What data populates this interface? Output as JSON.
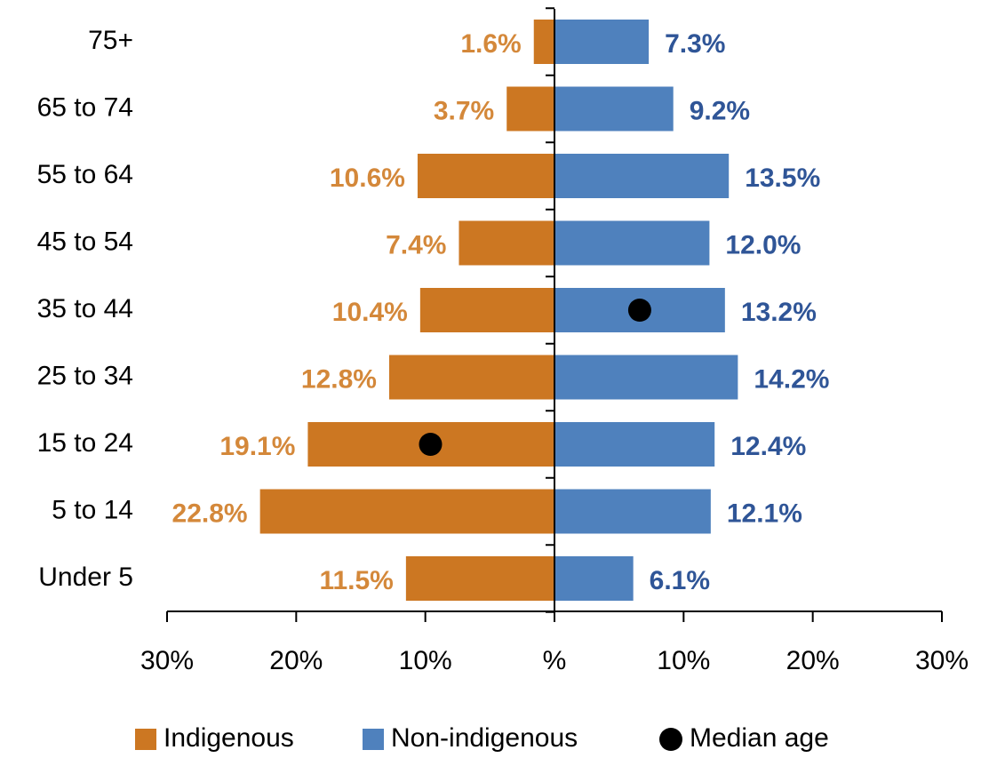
{
  "chart_data": {
    "type": "pyramid",
    "categories": [
      "75+",
      "65 to 74",
      "55 to 64",
      "45 to 54",
      "35 to 44",
      "25 to 34",
      "15 to 24",
      "5 to 14",
      "Under 5"
    ],
    "series": [
      {
        "name": "Indigenous",
        "color": "#CC7722",
        "label_color": "#D4883A",
        "side": "left",
        "values": [
          1.6,
          3.7,
          10.6,
          7.4,
          10.4,
          12.8,
          19.1,
          22.8,
          11.5
        ],
        "value_labels": [
          "1.6%",
          "3.7%",
          "10.6%",
          "7.4%",
          "10.4%",
          "12.8%",
          "19.1%",
          "22.8%",
          "11.5%"
        ]
      },
      {
        "name": "Non-indigenous",
        "color": "#4F81BD",
        "label_color": "#2F5597",
        "side": "right",
        "values": [
          7.3,
          9.2,
          13.5,
          12.0,
          13.2,
          14.2,
          12.4,
          12.1,
          6.1
        ],
        "value_labels": [
          "7.3%",
          "9.2%",
          "13.5%",
          "12.0%",
          "13.2%",
          "14.2%",
          "12.4%",
          "12.1%",
          "6.1%"
        ]
      }
    ],
    "median_age": {
      "name": "Median age",
      "color": "#000000",
      "points": [
        {
          "category": "15 to 24",
          "x": -9.6
        },
        {
          "category": "35 to 44",
          "x": 6.6
        }
      ]
    },
    "xlim": [
      -30,
      30
    ],
    "xticks": [
      {
        "value": -30,
        "label": "30%"
      },
      {
        "value": -20,
        "label": "20%"
      },
      {
        "value": -10,
        "label": "10%"
      },
      {
        "value": 0,
        "label": "%"
      },
      {
        "value": 10,
        "label": "10%"
      },
      {
        "value": 20,
        "label": "20%"
      },
      {
        "value": 30,
        "label": "30%"
      }
    ],
    "legend": "bottom"
  }
}
